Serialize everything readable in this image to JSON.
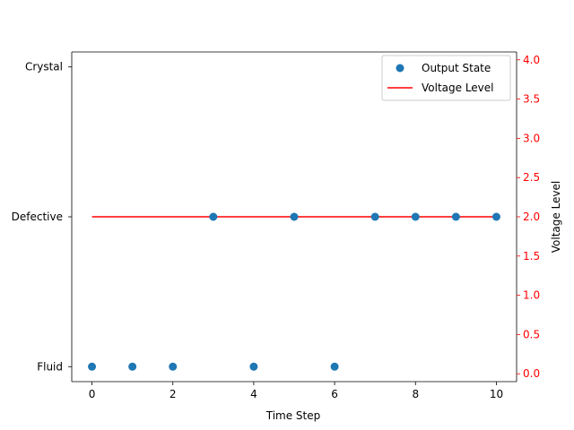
{
  "chart_data": {
    "type": "scatter",
    "title": "",
    "xlabel": "Time Step",
    "ylabel": "",
    "y2label": "Voltage Level",
    "xlim": [
      -0.5,
      10.5
    ],
    "xticks": [
      0,
      2,
      4,
      6,
      8,
      10
    ],
    "ylim_left_index": [
      -0.1,
      2.1
    ],
    "y_left_categories": [
      "Fluid",
      "Defective",
      "Crystal"
    ],
    "y2lim": [
      -0.1,
      4.1
    ],
    "y2ticks": [
      "0.0",
      "0.5",
      "1.0",
      "1.5",
      "2.0",
      "2.5",
      "3.0",
      "3.5",
      "4.0"
    ],
    "grid": false,
    "legend_position": "top-right",
    "series": [
      {
        "name": "Output State",
        "kind": "scatter",
        "axis": "left",
        "color": "#1f77b4",
        "x": [
          0,
          1,
          2,
          3,
          4,
          5,
          6,
          7,
          8,
          9,
          10
        ],
        "y": [
          "Fluid",
          "Fluid",
          "Fluid",
          "Defective",
          "Fluid",
          "Defective",
          "Fluid",
          "Defective",
          "Defective",
          "Defective",
          "Defective"
        ]
      },
      {
        "name": "Voltage Level",
        "kind": "line",
        "axis": "right",
        "color": "#ff0000",
        "x": [
          0,
          1,
          2,
          3,
          4,
          5,
          6,
          7,
          8,
          9,
          10
        ],
        "y": [
          2.0,
          2.0,
          2.0,
          2.0,
          2.0,
          2.0,
          2.0,
          2.0,
          2.0,
          2.0,
          2.0
        ]
      }
    ]
  }
}
